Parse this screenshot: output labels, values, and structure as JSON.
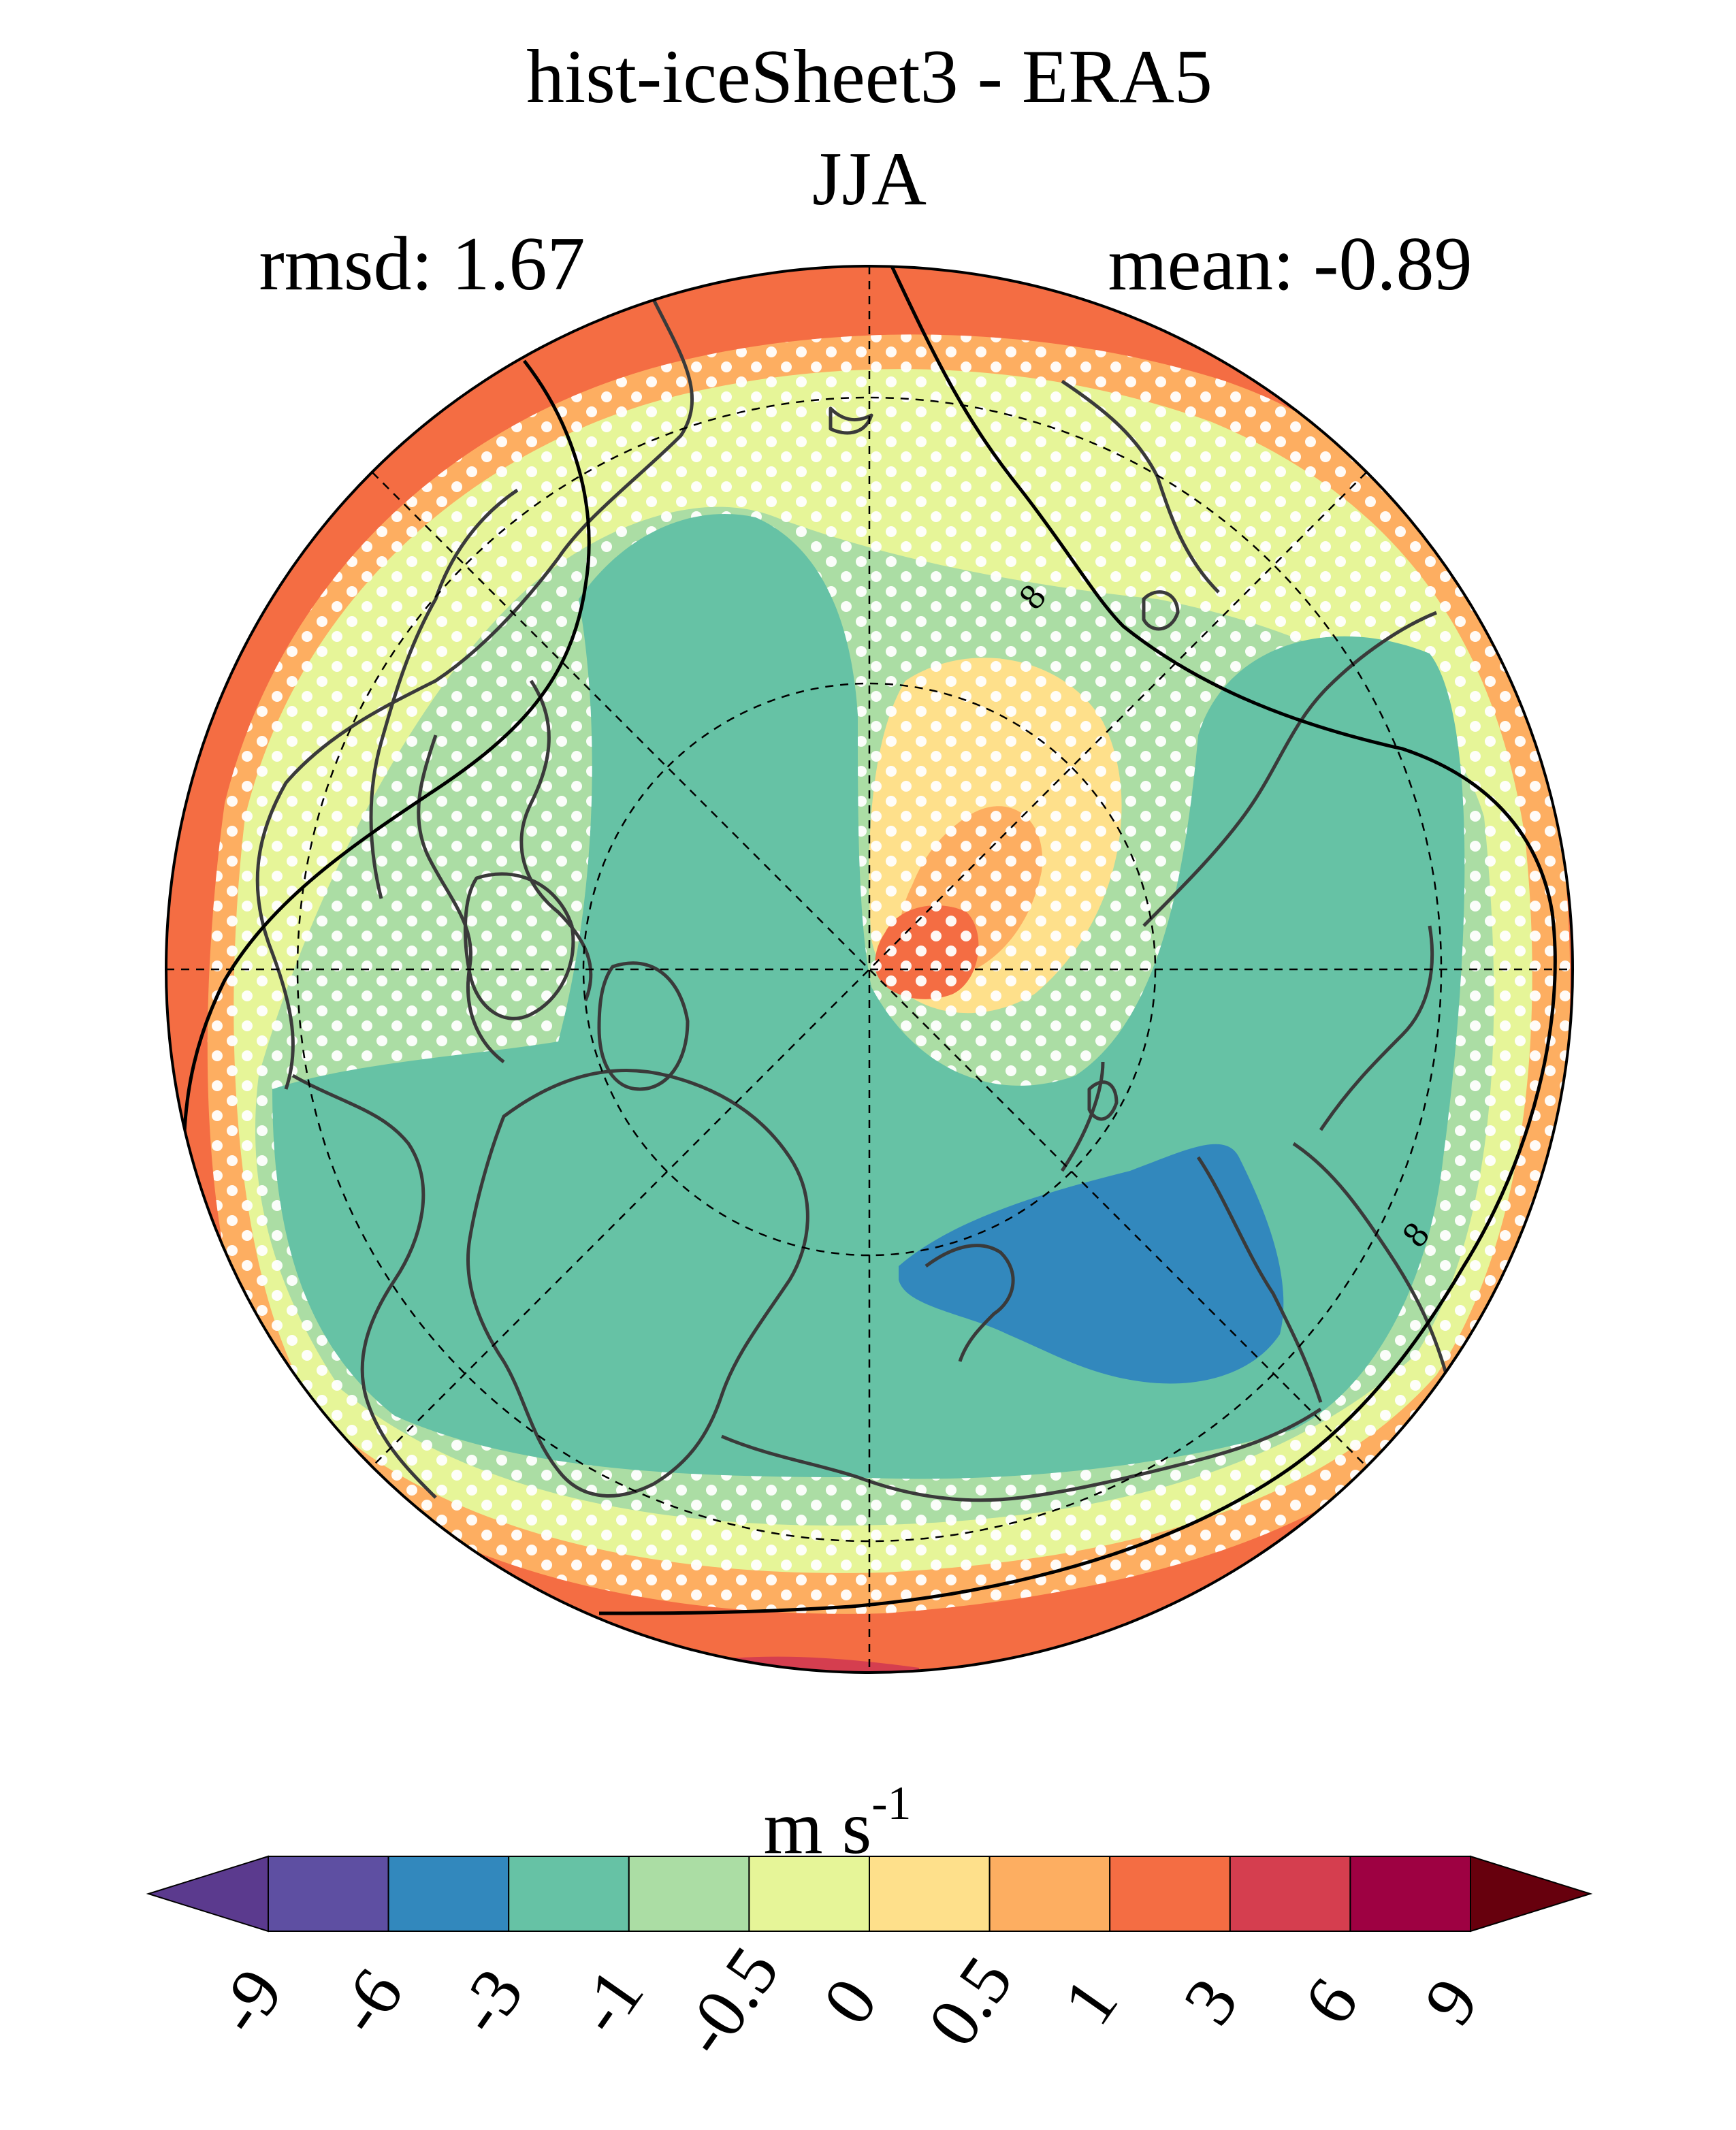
{
  "title": {
    "line1": "hist-iceSheet3 - ERA5",
    "line2": "JJA"
  },
  "stats": {
    "rmsd": "rmsd: 1.67",
    "mean": "mean: -0.89"
  },
  "contour_label": "8",
  "colorbar": {
    "unit_base": "m s",
    "unit_exp": "-1",
    "ticks": [
      "-9",
      "-6",
      "-3",
      "-1",
      "-0.5",
      "0",
      "0.5",
      "1",
      "3",
      "6",
      "9"
    ],
    "colors": [
      "#5e4fa2",
      "#3288bd",
      "#66c2a5",
      "#abdda4",
      "#e6f598",
      "#fee08b",
      "#fdae61",
      "#f46d43",
      "#d53e4f",
      "#9e0142"
    ],
    "under_color": "#5b3a8e",
    "over_color": "#67000d"
  },
  "map": {
    "projection": "north polar stereographic",
    "field_colors": {
      "strong_positive": "#d53e4f",
      "positive_3": "#f46d43",
      "positive_1": "#fdae61",
      "positive_05": "#fee08b",
      "near_zero_pos": "#e6f598",
      "near_zero_neg": "#abdda4",
      "negative_1": "#66c2a5",
      "negative_3": "#3288bd"
    },
    "coastline_color": "#3a3a3a",
    "stipple_color": "#ffffff"
  }
}
